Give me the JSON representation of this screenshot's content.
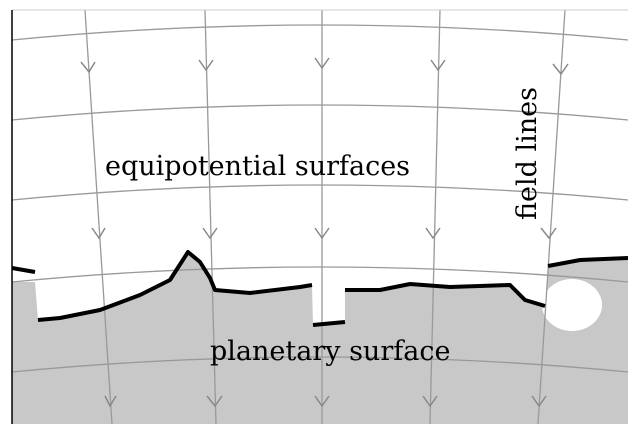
{
  "labels": {
    "equipotential": "equipotential surfaces",
    "field_lines": "field lines",
    "planetary": "planetary surface"
  }
}
